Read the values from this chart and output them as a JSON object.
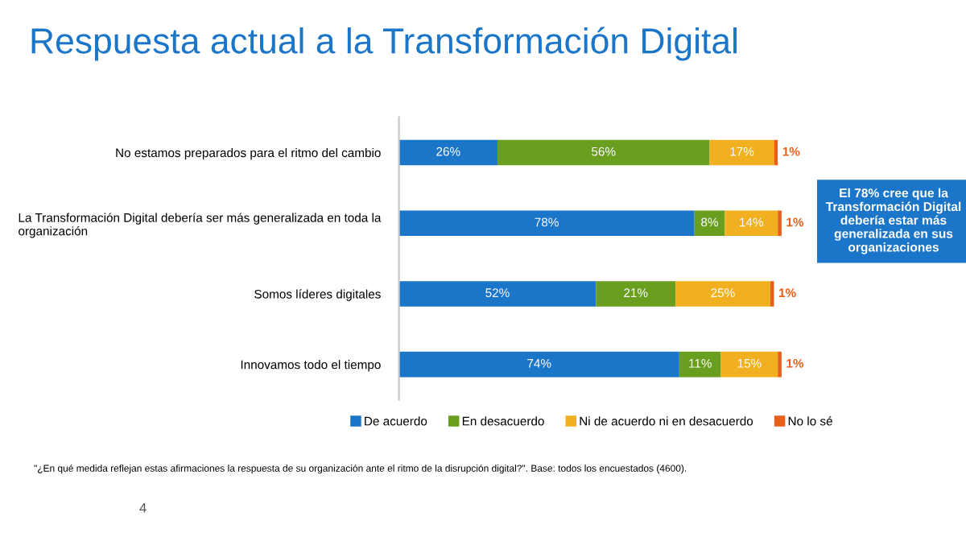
{
  "chart_data": {
    "type": "bar",
    "orientation": "horizontal",
    "stacked": true,
    "title": "Respuesta actual a la Transformación Digital",
    "categories": [
      "No estamos preparados para el ritmo del cambio",
      "La Transformación Digital debería ser más generalizada en toda la\norganización",
      "Somos líderes digitales",
      "Innovamos todo el tiempo"
    ],
    "series": [
      {
        "name": "De acuerdo",
        "color": "#1b75c8",
        "values": [
          26,
          78,
          52,
          74
        ],
        "value_labels": [
          "26%",
          "78%",
          "52%",
          "74%"
        ]
      },
      {
        "name": "En desacuerdo",
        "color": "#6a9e1f",
        "values": [
          56,
          8,
          21,
          11
        ],
        "value_labels": [
          "56%",
          "8%",
          "21%",
          "11%"
        ]
      },
      {
        "name": "Ni de acuerdo ni en desacuerdo",
        "color": "#f0b020",
        "values": [
          17,
          14,
          25,
          15
        ],
        "value_labels": [
          "17%",
          "14%",
          "25%",
          "15%"
        ]
      },
      {
        "name": "No lo sé",
        "color": "#e8611a",
        "values": [
          1,
          1,
          1,
          1
        ],
        "value_labels": [
          "1%",
          "1%",
          "1%",
          "1%"
        ]
      }
    ],
    "xlim": [
      0,
      102
    ],
    "tick_labels": "y",
    "grid": false,
    "legend": "bottom",
    "annotations": [
      "El 78% cree que la Transformación Digital debería estar más generalizada en sus organizaciones",
      "\"¿En qué medida reflejan estas afirmaciones la respuesta de su organización ante el ritmo de la disrupción digital?\". Base: todos los encuestados (4600).",
      "4"
    ]
  }
}
